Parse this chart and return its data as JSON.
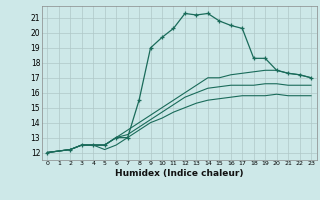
{
  "xlabel": "Humidex (Indice chaleur)",
  "xlim": [
    -0.5,
    23.5
  ],
  "ylim": [
    11.5,
    21.8
  ],
  "yticks": [
    12,
    13,
    14,
    15,
    16,
    17,
    18,
    19,
    20,
    21
  ],
  "xticks": [
    0,
    1,
    2,
    3,
    4,
    5,
    6,
    7,
    8,
    9,
    10,
    11,
    12,
    13,
    14,
    15,
    16,
    17,
    18,
    19,
    20,
    21,
    22,
    23
  ],
  "xtick_labels": [
    "0",
    "1",
    "2",
    "3",
    "4",
    "5",
    "6",
    "7",
    "8",
    "9",
    "10",
    "11",
    "12",
    "13",
    "14",
    "15",
    "16",
    "17",
    "18",
    "19",
    "20",
    "21",
    "22",
    "23"
  ],
  "bg_color": "#cde8e8",
  "grid_color": "#b0c8c8",
  "line_color": "#1a6b5a",
  "lines": [
    {
      "x": [
        0,
        2,
        3,
        4,
        5,
        6,
        7,
        8,
        9,
        10,
        11,
        12,
        13,
        14,
        15,
        16,
        17,
        18,
        19,
        20,
        21,
        22,
        23
      ],
      "y": [
        12,
        12.2,
        12.5,
        12.5,
        12.5,
        13.0,
        13.0,
        15.5,
        19.0,
        19.7,
        20.3,
        21.3,
        21.2,
        21.3,
        20.8,
        20.5,
        20.3,
        18.3,
        18.3,
        17.5,
        17.3,
        17.2,
        17.0
      ],
      "marker": true,
      "linestyle": "-"
    },
    {
      "x": [
        0,
        2,
        3,
        4,
        5,
        6,
        7,
        8,
        9,
        10,
        11,
        12,
        13,
        14,
        15,
        16,
        17,
        18,
        19,
        20,
        21,
        22,
        23
      ],
      "y": [
        12,
        12.2,
        12.5,
        12.5,
        12.5,
        13.0,
        13.5,
        14.0,
        14.5,
        15.0,
        15.5,
        16.0,
        16.5,
        17.0,
        17.0,
        17.2,
        17.3,
        17.4,
        17.5,
        17.5,
        17.3,
        17.2,
        17.0
      ],
      "marker": false,
      "linestyle": "-"
    },
    {
      "x": [
        0,
        2,
        3,
        4,
        5,
        6,
        7,
        8,
        9,
        10,
        11,
        12,
        13,
        14,
        15,
        16,
        16.5,
        17,
        18,
        19,
        20,
        21,
        22,
        23
      ],
      "y": [
        12,
        12.2,
        12.5,
        12.5,
        12.5,
        13.0,
        13.2,
        13.7,
        14.2,
        14.7,
        15.2,
        15.7,
        16.0,
        16.3,
        16.4,
        16.5,
        16.5,
        16.5,
        16.5,
        16.6,
        16.6,
        16.5,
        16.5,
        16.5
      ],
      "marker": false,
      "linestyle": "-"
    },
    {
      "x": [
        0,
        2,
        3,
        4,
        5,
        6,
        7,
        8,
        9,
        10,
        11,
        12,
        13,
        14,
        15,
        16,
        17,
        18,
        19,
        20,
        21,
        22,
        23
      ],
      "y": [
        12,
        12.2,
        12.5,
        12.5,
        12.2,
        12.5,
        13.0,
        13.5,
        14.0,
        14.3,
        14.7,
        15.0,
        15.3,
        15.5,
        15.6,
        15.7,
        15.8,
        15.8,
        15.8,
        15.9,
        15.8,
        15.8,
        15.8
      ],
      "marker": false,
      "linestyle": "-"
    }
  ]
}
